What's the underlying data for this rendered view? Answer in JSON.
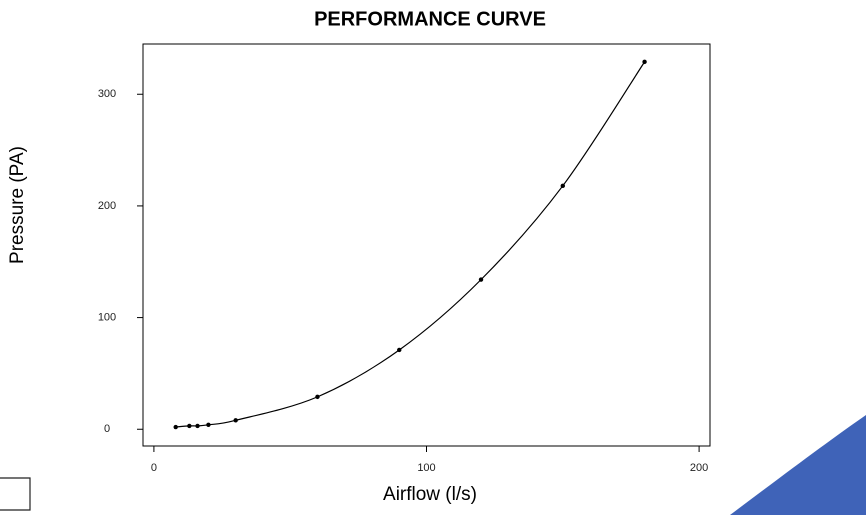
{
  "chart_data": {
    "type": "scatter",
    "title": "PERFORMANCE CURVE",
    "x_label": "Airflow (l/s)",
    "y_label": "Pressure (PA)",
    "x": [
      8,
      13,
      16,
      20,
      30,
      60,
      90,
      120,
      150,
      180
    ],
    "values": [
      2,
      3,
      3,
      4,
      8,
      29,
      71,
      134,
      218,
      329
    ],
    "color": "#000000",
    "xlim": [
      -4,
      204
    ],
    "xticks": [
      0,
      100,
      200
    ],
    "ylim": [
      -15,
      345
    ],
    "yticks": [
      0,
      100,
      200,
      300
    ],
    "fit_line": true
  }
}
